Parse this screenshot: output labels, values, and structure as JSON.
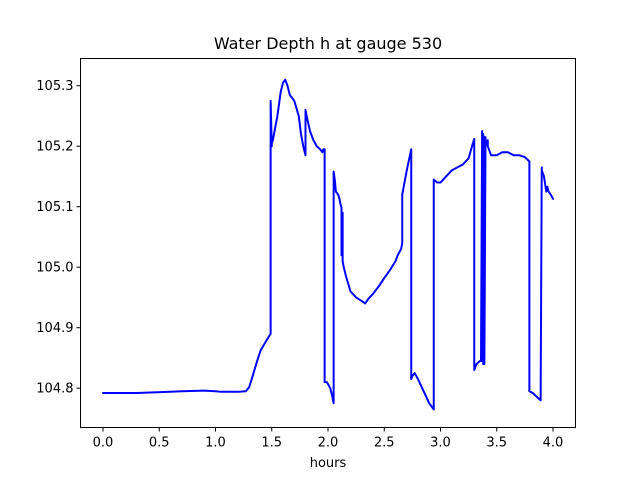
{
  "chart_data": {
    "type": "line",
    "title": "Water Depth h at gauge 530",
    "xlabel": "hours",
    "ylabel": "",
    "xlim": [
      -0.2,
      4.2
    ],
    "ylim": [
      104.735,
      105.345
    ],
    "xticks": [
      0.0,
      0.5,
      1.0,
      1.5,
      2.0,
      2.5,
      3.0,
      3.5,
      4.0
    ],
    "xtick_labels": [
      "0.0",
      "0.5",
      "1.0",
      "1.5",
      "2.0",
      "2.5",
      "3.0",
      "3.5",
      "4.0"
    ],
    "yticks": [
      104.8,
      104.9,
      105.0,
      105.1,
      105.2,
      105.3
    ],
    "ytick_labels": [
      "104.8",
      "104.9",
      "105.0",
      "105.1",
      "105.2",
      "105.3"
    ],
    "grid": false,
    "series": [
      {
        "color": "#0000ff",
        "x": [
          0.0,
          0.3,
          0.6,
          0.7,
          0.9,
          1.0,
          1.05,
          1.2,
          1.27,
          1.3,
          1.33,
          1.37,
          1.4,
          1.45,
          1.49,
          1.49,
          1.5,
          1.5,
          1.51,
          1.52,
          1.55,
          1.58,
          1.6,
          1.62,
          1.64,
          1.66,
          1.7,
          1.74,
          1.76,
          1.78,
          1.8,
          1.8,
          1.81,
          1.84,
          1.87,
          1.9,
          1.93,
          1.95,
          1.96,
          1.97,
          1.97,
          1.99,
          2.02,
          2.04,
          2.05,
          2.05,
          2.06,
          2.07,
          2.09,
          2.1,
          2.11,
          2.12,
          2.12,
          2.13,
          2.13,
          2.14,
          2.16,
          2.2,
          2.25,
          2.3,
          2.33,
          2.36,
          2.4,
          2.45,
          2.5,
          2.55,
          2.6,
          2.62,
          2.65,
          2.66,
          2.66,
          2.7,
          2.74,
          2.74,
          2.75,
          2.77,
          2.8,
          2.85,
          2.9,
          2.94,
          2.94,
          2.97,
          3.0,
          3.05,
          3.1,
          3.15,
          3.2,
          3.25,
          3.28,
          3.3,
          3.3,
          3.32,
          3.35,
          3.36,
          3.37,
          3.37,
          3.38,
          3.38,
          3.39,
          3.39,
          3.4,
          3.4,
          3.41,
          3.42,
          3.42,
          3.45,
          3.5,
          3.55,
          3.6,
          3.65,
          3.7,
          3.75,
          3.79,
          3.79,
          3.82,
          3.86,
          3.89,
          3.9,
          3.9,
          3.92,
          3.94,
          3.95,
          3.96,
          3.98,
          4.0
        ],
        "y": [
          104.792,
          104.792,
          104.794,
          104.795,
          104.796,
          104.795,
          104.794,
          104.794,
          104.795,
          104.802,
          104.82,
          104.845,
          104.862,
          104.878,
          104.89,
          105.275,
          105.2,
          105.205,
          105.21,
          105.22,
          105.25,
          105.29,
          105.305,
          105.31,
          105.3,
          105.285,
          105.275,
          105.25,
          105.22,
          105.2,
          105.185,
          105.26,
          105.25,
          105.225,
          105.21,
          105.2,
          105.195,
          105.19,
          105.195,
          105.195,
          104.81,
          104.81,
          104.8,
          104.785,
          104.775,
          105.158,
          105.145,
          105.125,
          105.12,
          105.115,
          105.105,
          105.098,
          105.02,
          105.09,
          105.01,
          105.0,
          104.985,
          104.96,
          104.95,
          104.944,
          104.94,
          104.948,
          104.956,
          104.968,
          104.982,
          104.995,
          105.01,
          105.02,
          105.03,
          105.04,
          105.12,
          105.16,
          105.195,
          104.815,
          104.82,
          104.825,
          104.815,
          104.795,
          104.775,
          104.765,
          105.145,
          105.14,
          105.14,
          105.15,
          105.16,
          105.165,
          105.17,
          105.18,
          105.2,
          105.212,
          104.83,
          104.84,
          104.845,
          104.845,
          105.225,
          104.845,
          105.22,
          104.84,
          105.215,
          104.84,
          105.215,
          105.2,
          105.205,
          105.21,
          105.2,
          105.185,
          105.185,
          105.19,
          105.19,
          105.185,
          105.185,
          105.182,
          105.175,
          104.795,
          104.792,
          104.785,
          104.78,
          105.165,
          105.16,
          105.15,
          105.125,
          105.133,
          105.125,
          105.12,
          105.113
        ]
      }
    ]
  }
}
